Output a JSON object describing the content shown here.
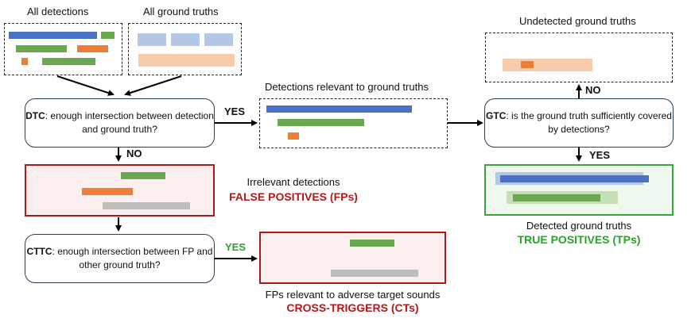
{
  "colors": {
    "blue": "#4a72c4",
    "green": "#6aa84f",
    "orange": "#ee7d35",
    "gray": "#bdbdbd",
    "light_blue": "#b4c7e7",
    "light_peach": "#f8cbad",
    "light_green": "#c5e0b4",
    "red": "#b01a1a",
    "dark_green": "#2e9e2e"
  },
  "labels": {
    "all_detections": "All detections",
    "all_ground_truths": "All ground truths",
    "undetected_ground_truths": "Undetected ground truths",
    "relevant_detections": "Detections relevant to ground truths",
    "irrelevant_detections": "Irrelevant detections",
    "false_positives": "FALSE POSITIVES (FPs)",
    "detected_ground_truths": "Detected ground truths",
    "true_positives": "TRUE POSITIVES (TPs)",
    "fps_relevant": "FPs relevant to adverse target sounds",
    "cross_triggers": "CROSS-TRIGGERS (CTs)"
  },
  "nodes": {
    "dtc": {
      "abbr": "DTC",
      "text": ": enough intersection between detection and ground truth?"
    },
    "gtc": {
      "abbr": "GTC",
      "text": ": is the ground truth sufficiently covered by detections?"
    },
    "cttc": {
      "abbr": "CTTC",
      "text": ": enough intersection between FP and other ground truth?"
    }
  },
  "edges": {
    "dtc_yes": "YES",
    "dtc_no": "NO",
    "gtc_no": "NO",
    "gtc_yes": "YES",
    "cttc_yes": "YES"
  }
}
